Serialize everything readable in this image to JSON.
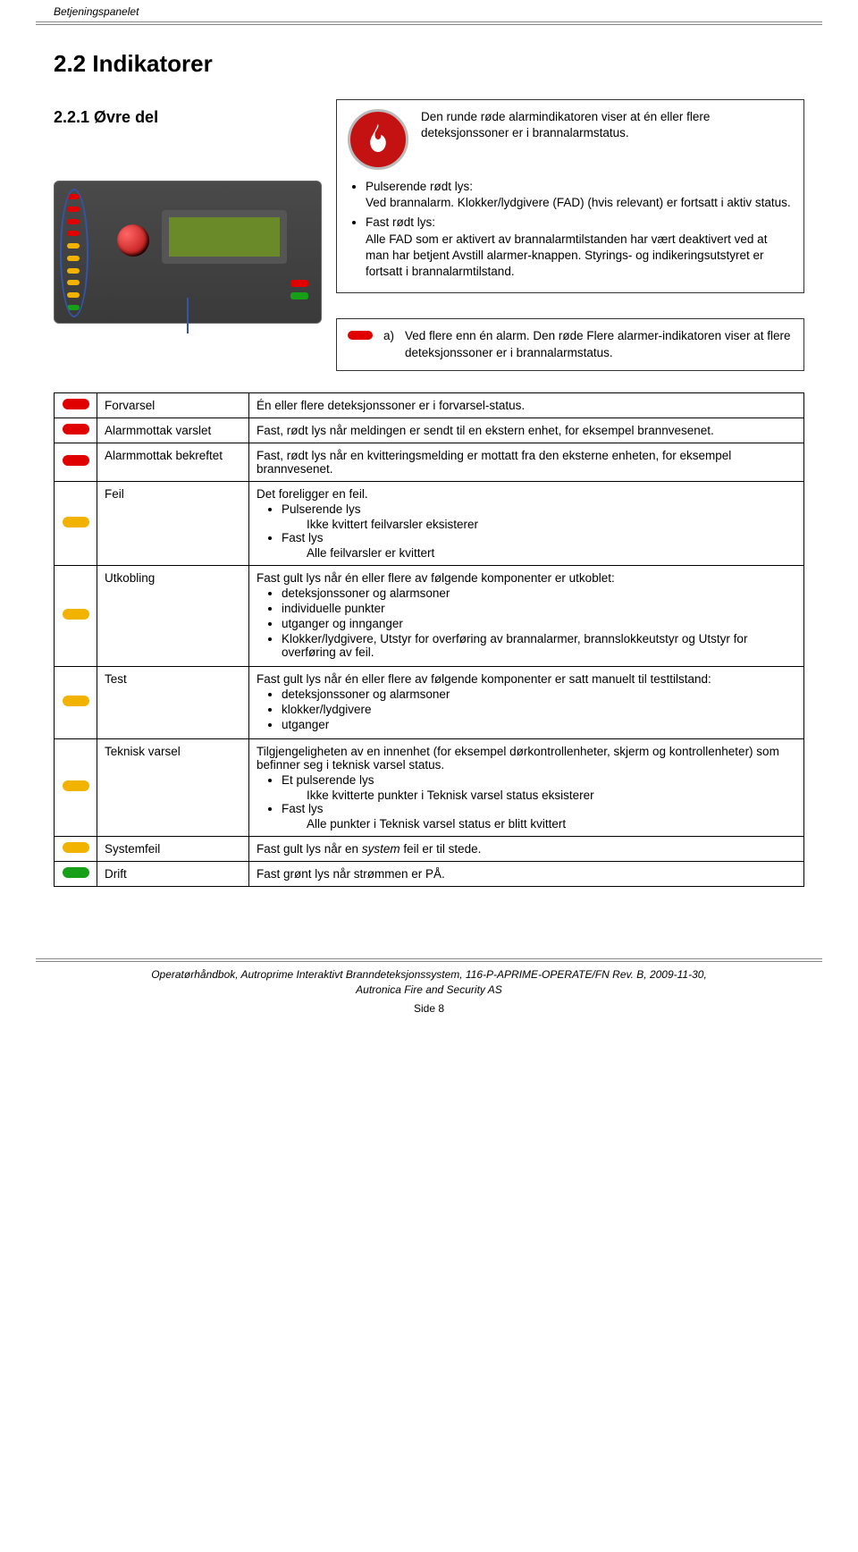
{
  "header": {
    "running_title": "Betjeningspanelet"
  },
  "section": {
    "title": "2.2 Indikatorer",
    "subsection_title": "2.2.1 Øvre del"
  },
  "colors": {
    "red": "#e10000",
    "yellow": "#f2b200",
    "green": "#17a017",
    "fire_badge": "#c41212",
    "border": "#000000"
  },
  "box1": {
    "intro": "Den runde røde alarmindikatoren viser at én eller flere deteksjonssoner er i brannalarmstatus.",
    "b1_label": "Pulserende rødt lys:",
    "b1_text": "Ved brannalarm. Klokker/lydgivere (FAD) (hvis relevant) er fortsatt i aktiv status.",
    "b2_label": "Fast rødt lys:",
    "b2_text": "Alle FAD som er aktivert av brannalarmtilstanden har vært deaktivert ved at man har betjent Avstill alarmer-knappen. Styrings- og indikeringsutstyret er fortsatt i brannalarmtilstand."
  },
  "box2": {
    "label": "a)",
    "text": "Ved flere enn én alarm. Den røde Flere alarmer-indikatoren viser at flere deteksjonssoner er i brannalarmstatus."
  },
  "panel_leds": [
    "#e10000",
    "#e10000",
    "#e10000",
    "#e10000",
    "#f2b200",
    "#f2b200",
    "#f2b200",
    "#f2b200",
    "#f2b200",
    "#17a017"
  ],
  "table": {
    "rows": [
      {
        "color": "#e10000",
        "label": "Forvarsel",
        "desc_plain": "Én eller flere deteksjonssoner er i forvarsel-status."
      },
      {
        "color": "#e10000",
        "label": "Alarmmottak varslet",
        "desc_plain": "Fast, rødt lys når meldingen er sendt til en ekstern enhet, for eksempel brannvesenet."
      },
      {
        "color": "#e10000",
        "label": "Alarmmottak bekreftet",
        "desc_plain": "Fast, rødt lys når en kvitteringsmelding er mottatt fra den eksterne enheten, for eksempel brannvesenet."
      },
      {
        "color": "#f2b200",
        "label": "Feil",
        "desc_lead": "Det foreligger en feil.",
        "bullets": [
          {
            "head": "Pulserende lys",
            "sub": "Ikke kvittert feilvarsler eksisterer"
          },
          {
            "head": "Fast lys",
            "sub": "Alle feilvarsler er kvittert"
          }
        ]
      },
      {
        "color": "#f2b200",
        "label": "Utkobling",
        "desc_lead": "Fast gult lys når én eller flere av følgende komponenter er utkoblet:",
        "bullets_plain": [
          "deteksjonssoner og alarmsoner",
          "individuelle punkter",
          "utganger og innganger",
          "Klokker/lydgivere, Utstyr for overføring av brannalarmer, brannslokkeutstyr og Utstyr for overføring av feil."
        ]
      },
      {
        "color": "#f2b200",
        "label": "Test",
        "desc_lead": "Fast gult lys når én eller flere av følgende komponenter er satt manuelt til testtilstand:",
        "bullets_plain": [
          "deteksjonssoner og alarmsoner",
          "klokker/lydgivere",
          "utganger"
        ]
      },
      {
        "color": "#f2b200",
        "label": "Teknisk varsel",
        "desc_lead": "Tilgjengeligheten av en innenhet (for eksempel dørkontrollenheter, skjerm og kontrollenheter) som befinner seg i teknisk varsel status.",
        "bullets": [
          {
            "head": "Et pulserende lys",
            "sub": "Ikke kvitterte punkter i Teknisk varsel status eksisterer"
          },
          {
            "head": "Fast lys",
            "sub": "Alle punkter i Teknisk varsel status er blitt kvittert"
          }
        ]
      },
      {
        "color": "#f2b200",
        "label": "Systemfeil",
        "desc_html_pre": "Fast gult lys når en ",
        "desc_html_italic": "system",
        "desc_html_post": " feil er til stede."
      },
      {
        "color": "#17a017",
        "label": "Drift",
        "desc_plain": "Fast grønt lys når strømmen er PÅ."
      }
    ]
  },
  "footer": {
    "line1": "Operatørhåndbok, Autroprime Interaktivt Branndeteksjonssystem, 116-P-APRIME-OPERATE/FN Rev. B, 2009-11-30,",
    "line2": "Autronica Fire and Security AS",
    "page": "Side 8"
  }
}
